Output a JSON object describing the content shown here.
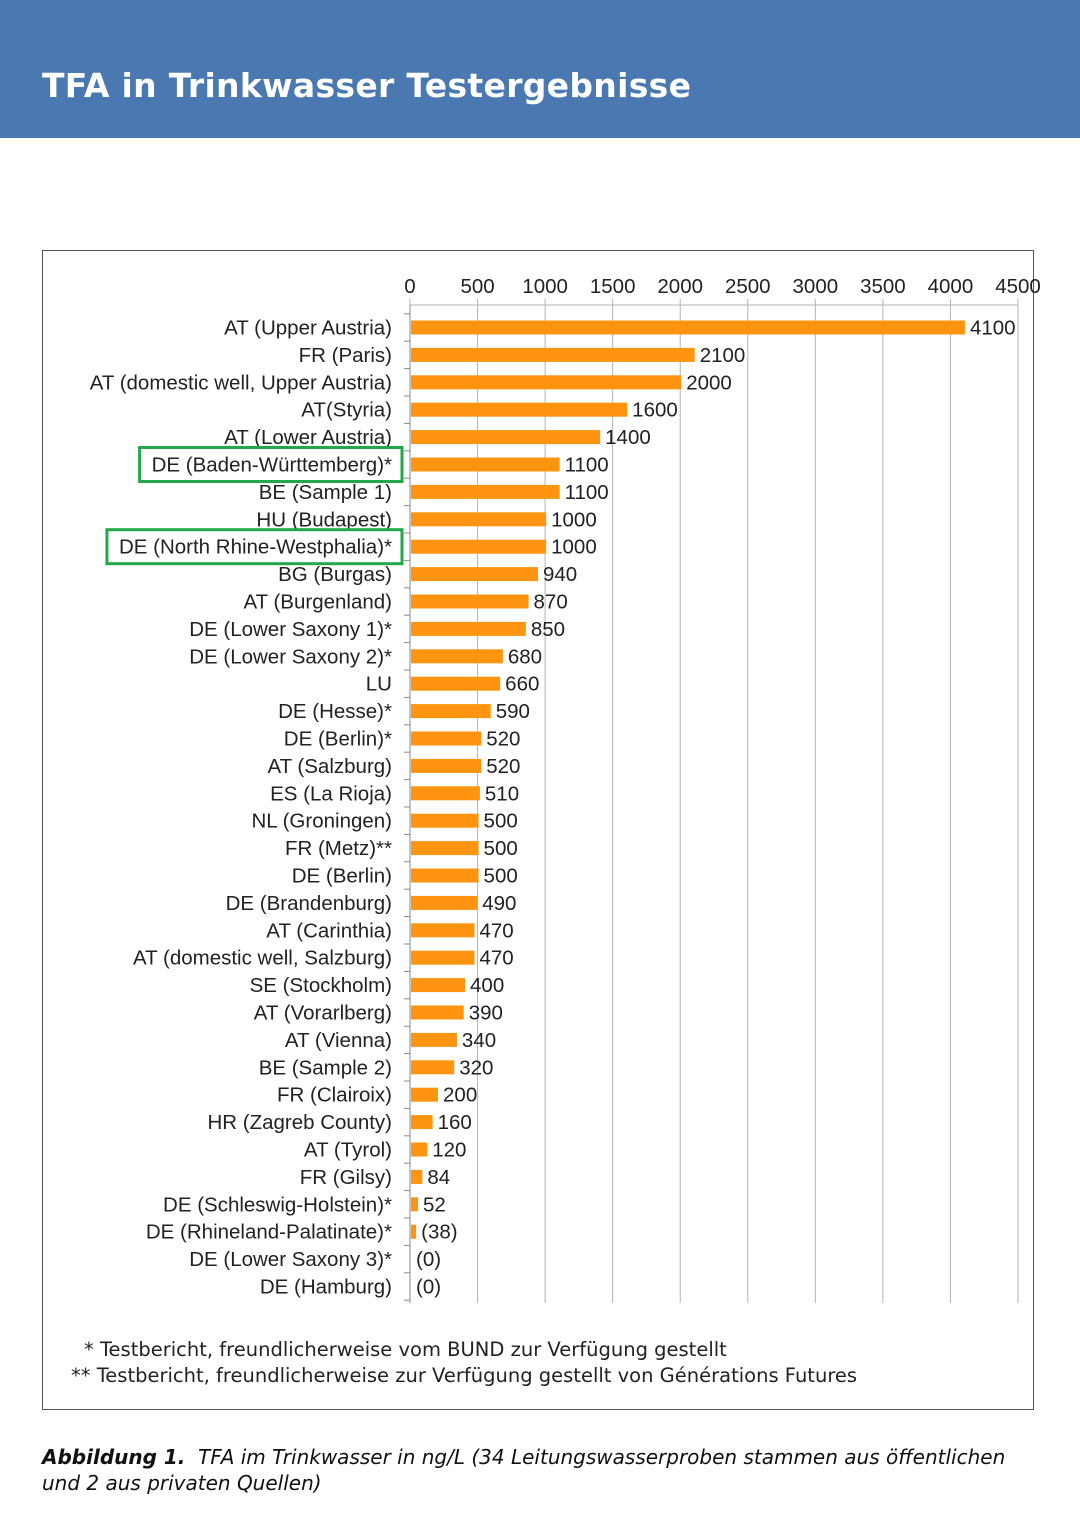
{
  "header": {
    "title": "TFA in Trinkwasser Testergebnisse",
    "background": "#4a78b0"
  },
  "chart_data": {
    "type": "bar",
    "orientation": "horizontal",
    "title": "",
    "xlabel": "",
    "ylabel": "",
    "xlim": [
      0,
      4500
    ],
    "x_ticks": [
      "0",
      "500",
      "1000",
      "1500",
      "2000",
      "2500",
      "3000",
      "3500",
      "4000",
      "4500"
    ],
    "x_tick_values": [
      0,
      500,
      1000,
      1500,
      2000,
      2500,
      3000,
      3500,
      4000,
      4500
    ],
    "x_axis_position": "top",
    "grid": true,
    "bar_color": "#ff9410",
    "highlight_color": "#22a84a",
    "categories": [
      "AT (Upper Austria)",
      "FR (Paris)",
      "AT (domestic well, Upper Austria)",
      "AT(Styria)",
      "AT (Lower Austria)",
      "DE (Baden-Württemberg)*",
      "BE (Sample 1)",
      "HU (Budapest)",
      "DE (North Rhine-Westphalia)*",
      "BG (Burgas)",
      "AT (Burgenland)",
      "DE (Lower Saxony 1)*",
      "DE (Lower Saxony 2)*",
      "LU",
      "DE (Hesse)*",
      "DE (Berlin)*",
      "AT (Salzburg)",
      "ES (La Rioja)",
      "NL (Groningen)",
      "FR (Metz)**",
      "DE (Berlin)",
      "DE (Brandenburg)",
      "AT (Carinthia)",
      "AT (domestic well, Salzburg)",
      "SE (Stockholm)",
      "AT (Vorarlberg)",
      "AT (Vienna)",
      "BE (Sample 2)",
      "FR (Clairoix)",
      "HR (Zagreb County)",
      "AT (Tyrol)",
      "FR (Gilsy)",
      "DE (Schleswig-Holstein)*",
      "DE (Rhineland-Palatinate)*",
      "DE (Lower Saxony 3)*",
      "DE (Hamburg)"
    ],
    "values": [
      4100,
      2100,
      2000,
      1600,
      1400,
      1100,
      1100,
      1000,
      1000,
      940,
      870,
      850,
      680,
      660,
      590,
      520,
      520,
      510,
      500,
      500,
      500,
      490,
      470,
      470,
      400,
      390,
      340,
      320,
      200,
      160,
      120,
      84,
      52,
      38,
      0,
      0
    ],
    "value_labels": [
      "4100",
      "2100",
      "2000",
      "1600",
      "1400",
      "1100",
      "1100",
      "1000",
      "1000",
      "940",
      "870",
      "850",
      "680",
      "660",
      "590",
      "520",
      "520",
      "510",
      "500",
      "500",
      "500",
      "490",
      "470",
      "470",
      "400",
      "390",
      "340",
      "320",
      "200",
      "160",
      "120",
      "84",
      "52",
      "(38)",
      "(0)",
      "(0)"
    ],
    "highlighted": [
      "DE (Baden-Württemberg)*",
      "DE (North Rhine-Westphalia)*"
    ]
  },
  "footnotes": [
    {
      "marker": "*",
      "text": "Testbericht, freundlicherweise vom BUND zur Verfügung gestellt"
    },
    {
      "marker": "**",
      "text": "Testbericht, freundlicherweise zur Verfügung gestellt von Générations Futures"
    }
  ],
  "caption": {
    "label": "Abbildung 1.",
    "text": "TFA im Trinkwasser in ng/L (34 Leitungswasserproben stammen aus öffentlichen und 2 aus privaten Quellen)"
  }
}
